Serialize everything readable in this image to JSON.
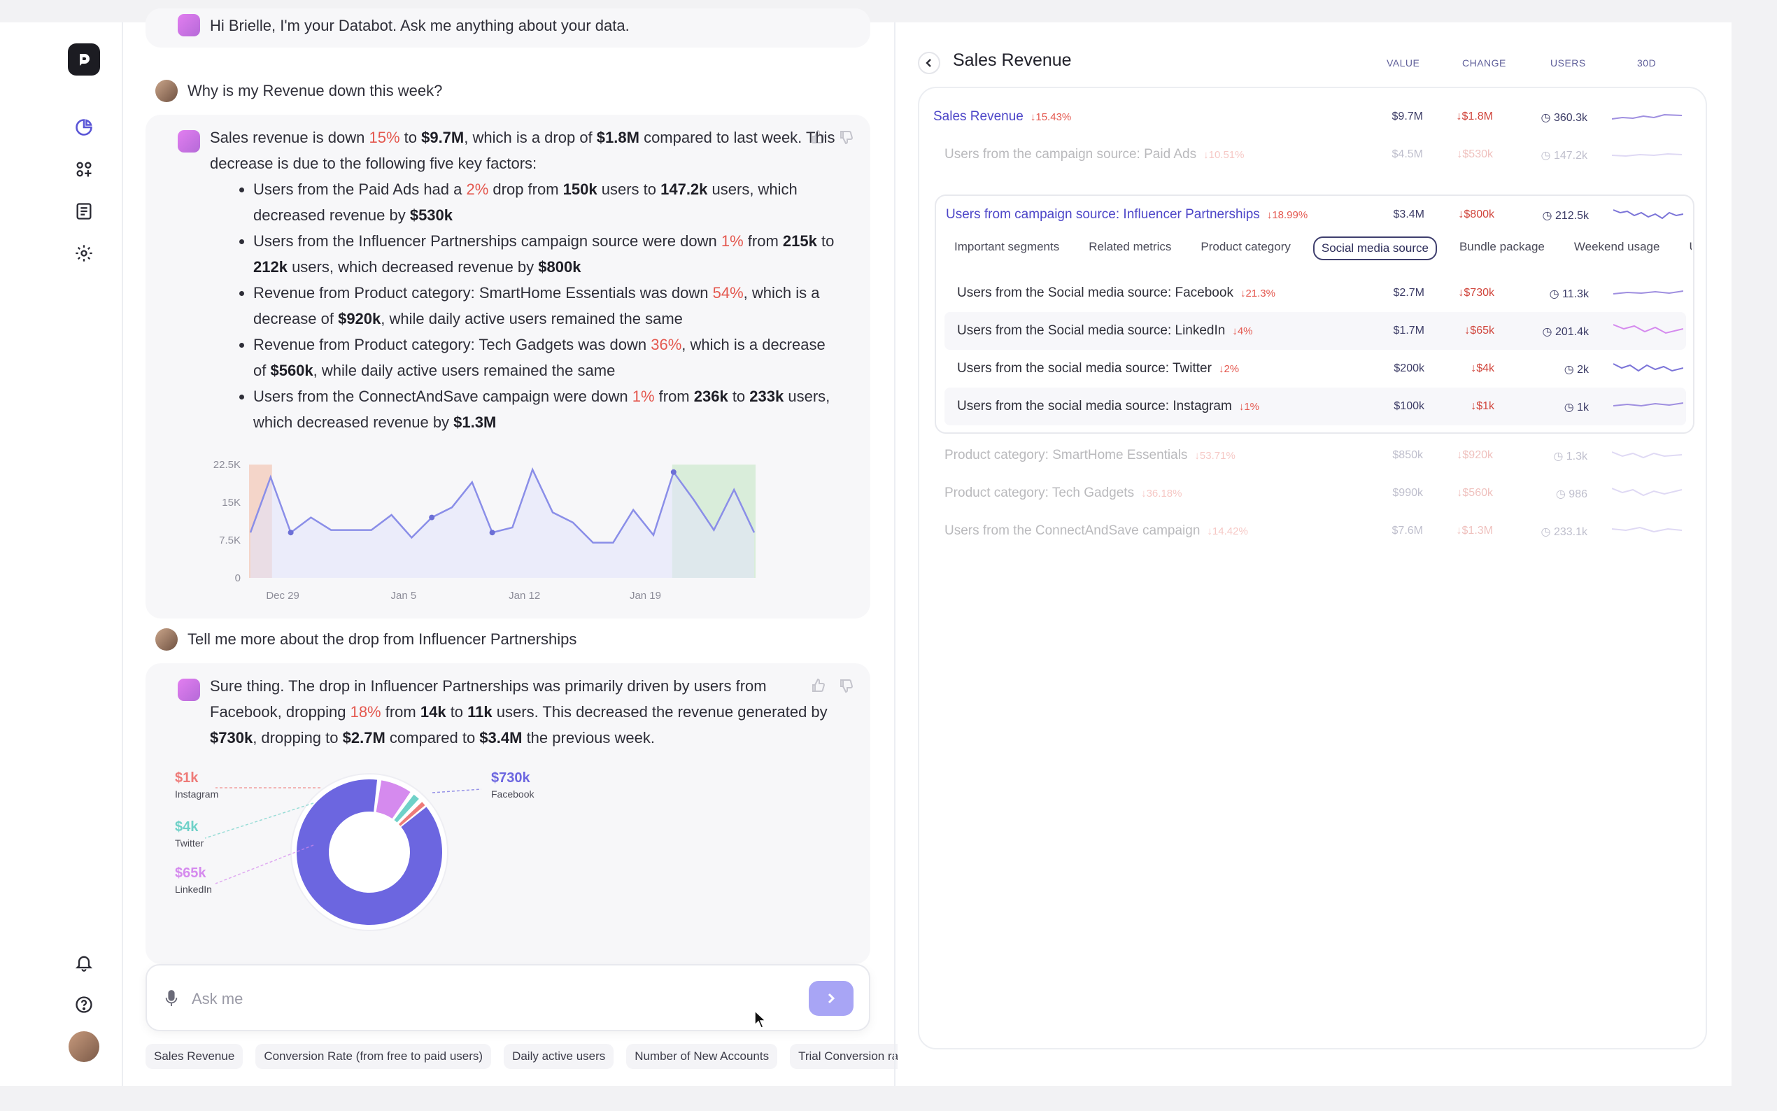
{
  "chat": {
    "greeting": "Hi Brielle, I'm your Databot. Ask me anything about your data.",
    "q1": "Why is my Revenue down this week?",
    "a1": {
      "intro_p1": "Sales revenue is down ",
      "intro_pct": "15%",
      "intro_p2": " to ",
      "intro_val": "$9.7M",
      "intro_p3": ", which is a drop of ",
      "intro_drop": "$1.8M",
      "intro_p4": " compared to last week. This decrease is due to the following five key factors:",
      "bullets": [
        {
          "t1": "Users from the Paid Ads had a ",
          "pct": "2%",
          "t2": " drop from ",
          "b1": "150k",
          "t3": " users to ",
          "b2": "147.2k",
          "t4": " users, which decreased revenue by ",
          "b3": "$530k"
        },
        {
          "t1": "Users from the Influencer Partnerships campaign source were down ",
          "pct": "1%",
          "t2": " from ",
          "b1": "215k",
          "t3": " to ",
          "b2": "212k",
          "t4": " users, which decreased revenue by ",
          "b3": "$800k"
        },
        {
          "t1": "Revenue from Product category: SmartHome Essentials was down ",
          "pct": "54%",
          "t2": ", which is a decrease of ",
          "b1": "$920k",
          "t3": ", while daily active users remained the same",
          "b2": "",
          "t4": "",
          "b3": ""
        },
        {
          "t1": "Revenue from Product category: Tech Gadgets was down ",
          "pct": "36%",
          "t2": ", which is a decrease of ",
          "b1": "$560k",
          "t3": ", while daily active users remained the same",
          "b2": "",
          "t4": "",
          "b3": ""
        },
        {
          "t1": "Users from the ConnectAndSave campaign were down ",
          "pct": "1%",
          "t2": " from ",
          "b1": "236k",
          "t3": " to ",
          "b2": "233k",
          "t4": " users, which decreased revenue by ",
          "b3": "$1.3M"
        }
      ]
    },
    "q2": "Tell me more about the drop from Influencer Partnerships",
    "a2": {
      "t1": "Sure thing. The drop in Influencer Partnerships was primarily driven by users from Facebook, dropping ",
      "pct": "18%",
      "t2": " from ",
      "b1": "14k",
      "t3": " to ",
      "b2": "11k",
      "t4": " users. This decreased the revenue generated by ",
      "b3": "$730k",
      "t5": ", dropping to ",
      "b4": "$2.7M",
      "t6": " compared to ",
      "b5": "$3.4M",
      "t7": " the previous week."
    },
    "input_placeholder": "Ask me",
    "chips": [
      "Sales Revenue",
      "Conversion Rate (from free to paid users)",
      "Daily active users",
      "Number of New Accounts",
      "Trial Conversion ra"
    ]
  },
  "chart_data": [
    {
      "type": "line",
      "x_ticks": [
        "Dec 29",
        "Jan 5",
        "Jan 12",
        "Jan 19"
      ],
      "y_ticks": [
        "0",
        "7.5K",
        "15K",
        "22.5K"
      ],
      "ylim": [
        0,
        22500
      ],
      "values": [
        9000,
        20000,
        9000,
        12000,
        9500,
        9500,
        9500,
        12500,
        8000,
        12000,
        14000,
        19000,
        9000,
        10000,
        21500,
        13000,
        11000,
        7000,
        7000,
        13500,
        8500,
        21000,
        15500,
        9500,
        17500,
        9000
      ],
      "highlight": [
        {
          "color": "#f3c9b8",
          "from": 0,
          "to": 1
        },
        {
          "color": "#cfe9cf",
          "from": 21,
          "to": 25
        }
      ]
    },
    {
      "type": "pie",
      "slices": [
        {
          "label": "Facebook",
          "value_label": "$730k",
          "value": 730,
          "color": "#6c66e0"
        },
        {
          "label": "LinkedIn",
          "value_label": "$65k",
          "value": 65,
          "color": "#d58aee"
        },
        {
          "label": "Twitter",
          "value_label": "$4k",
          "value": 4,
          "color": "#6fd1c8"
        },
        {
          "label": "Instagram",
          "value_label": "$1k",
          "value": 1,
          "color": "#ee7b79"
        }
      ]
    }
  ],
  "panel": {
    "title": "Sales Revenue",
    "cols": [
      "VALUE",
      "CHANGE",
      "USERS",
      "30D"
    ],
    "main": {
      "label": "Sales Revenue",
      "chg": "15.43%",
      "v": "$9.7M",
      "c": "$1.8M",
      "u": "360.3k"
    },
    "paid": {
      "label": "Users from the campaign source: Paid Ads",
      "chg": "10.51%",
      "v": "$4.5M",
      "c": "$530k",
      "u": "147.2k"
    },
    "infl": {
      "label": "Users from campaign source: Influencer Partnerships",
      "chg": "18.99%",
      "v": "$3.4M",
      "c": "$800k",
      "u": "212.5k"
    },
    "tabs": [
      "Important segments",
      "Related metrics",
      "Product category",
      "Social media source",
      "Bundle package",
      "Weekend usage",
      "Use"
    ],
    "subs": [
      {
        "label": "Users from the Social media source: Facebook",
        "chg": "21.3%",
        "v": "$2.7M",
        "c": "$730k",
        "u": "11.3k"
      },
      {
        "label": "Users from the Social media source: LinkedIn",
        "chg": "4%",
        "v": "$1.7M",
        "c": "$65k",
        "u": "201.4k"
      },
      {
        "label": "Users from the social media source: Twitter",
        "chg": "2%",
        "v": "$200k",
        "c": "$4k",
        "u": "2k"
      },
      {
        "label": "Users from the social media source: Instagram",
        "chg": "1%",
        "v": "$100k",
        "c": "$1k",
        "u": "1k"
      }
    ],
    "others": [
      {
        "label": "Product category: SmartHome Essentials",
        "chg": "53.71%",
        "v": "$850k",
        "c": "$920k",
        "u": "1.3k"
      },
      {
        "label": "Product category: Tech Gadgets",
        "chg": "36.18%",
        "v": "$990k",
        "c": "$560k",
        "u": "986"
      },
      {
        "label": "Users from the ConnectAndSave campaign",
        "chg": "14.42%",
        "v": "$7.6M",
        "c": "$1.3M",
        "u": "233.1k"
      }
    ]
  },
  "icons": {
    "logo": "databot-logo-icon",
    "nav": [
      "analytics-icon",
      "apps-icon",
      "notes-icon",
      "settings-icon"
    ],
    "bottom": [
      "bell-icon",
      "help-icon"
    ],
    "accent": "#6c66e0"
  }
}
